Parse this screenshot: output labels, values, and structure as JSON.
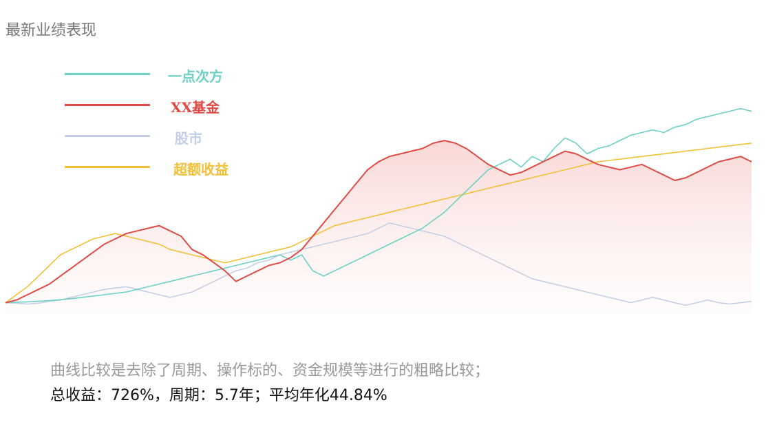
{
  "header": {
    "title": "最新业绩表现"
  },
  "chart_data": {
    "type": "line",
    "xlabel": "",
    "ylabel": "",
    "grid": false,
    "legend_placement": "top-left",
    "area_fill_series": "XX基金",
    "x": [
      0,
      1,
      2,
      3,
      4,
      5,
      6,
      7,
      8,
      9,
      10,
      11,
      12,
      13,
      14,
      15,
      16,
      17,
      18,
      19,
      20,
      21,
      22,
      23,
      24,
      25,
      26,
      27,
      28,
      29,
      30,
      31,
      32,
      33,
      34,
      35,
      36,
      37,
      38,
      39,
      40,
      41,
      42,
      43,
      44,
      45,
      46,
      47,
      48,
      49,
      50,
      51,
      52,
      53,
      54,
      55,
      56,
      57,
      58,
      59,
      60,
      61,
      62,
      63,
      64,
      65,
      66,
      67,
      68
    ],
    "ylim": [
      -0.4,
      7.5
    ],
    "series": [
      {
        "name": "一点次方",
        "color": "#6dd0c5",
        "values": [
          0.0,
          0.02,
          0.03,
          0.05,
          0.08,
          0.11,
          0.15,
          0.2,
          0.25,
          0.3,
          0.35,
          0.4,
          0.5,
          0.6,
          0.7,
          0.8,
          0.9,
          1.0,
          1.1,
          1.2,
          1.3,
          1.4,
          1.5,
          1.6,
          1.7,
          1.8,
          1.6,
          1.8,
          1.2,
          1.0,
          1.2,
          1.4,
          1.6,
          1.8,
          2.0,
          2.2,
          2.4,
          2.6,
          2.8,
          3.1,
          3.4,
          3.8,
          4.2,
          4.6,
          5.0,
          5.2,
          5.4,
          5.1,
          5.5,
          5.3,
          5.8,
          6.2,
          6.0,
          5.6,
          5.8,
          5.9,
          6.1,
          6.3,
          6.4,
          6.5,
          6.4,
          6.6,
          6.7,
          6.9,
          7.0,
          7.1,
          7.2,
          7.3,
          7.2
        ]
      },
      {
        "name": "XX基金",
        "color": "#e04a45",
        "values": [
          0.0,
          0.1,
          0.3,
          0.5,
          0.7,
          1.0,
          1.3,
          1.6,
          1.9,
          2.2,
          2.4,
          2.6,
          2.7,
          2.8,
          2.9,
          2.7,
          2.5,
          2.0,
          1.8,
          1.5,
          1.2,
          0.8,
          1.0,
          1.2,
          1.4,
          1.5,
          1.7,
          2.0,
          2.5,
          3.0,
          3.5,
          4.0,
          4.5,
          5.0,
          5.3,
          5.5,
          5.6,
          5.7,
          5.8,
          6.0,
          6.1,
          6.0,
          5.8,
          5.5,
          5.2,
          5.0,
          4.8,
          4.9,
          5.1,
          5.3,
          5.5,
          5.7,
          5.6,
          5.4,
          5.2,
          5.1,
          5.0,
          5.1,
          5.2,
          5.0,
          4.8,
          4.6,
          4.7,
          4.9,
          5.1,
          5.3,
          5.4,
          5.5,
          5.3
        ]
      },
      {
        "name": "股市",
        "color": "#c3cfe6",
        "values": [
          0.0,
          -0.02,
          -0.05,
          -0.02,
          0.05,
          0.1,
          0.2,
          0.3,
          0.4,
          0.5,
          0.55,
          0.6,
          0.5,
          0.4,
          0.3,
          0.2,
          0.3,
          0.4,
          0.6,
          0.8,
          1.0,
          1.2,
          1.3,
          1.5,
          1.6,
          1.8,
          1.9,
          2.0,
          2.1,
          2.2,
          2.3,
          2.4,
          2.5,
          2.6,
          2.8,
          3.0,
          2.9,
          2.8,
          2.7,
          2.6,
          2.5,
          2.3,
          2.1,
          1.9,
          1.7,
          1.5,
          1.3,
          1.1,
          0.9,
          0.8,
          0.7,
          0.6,
          0.5,
          0.4,
          0.3,
          0.2,
          0.1,
          0.0,
          0.1,
          0.2,
          0.1,
          0.0,
          -0.1,
          0.0,
          0.1,
          0.0,
          -0.05,
          0.0,
          0.05
        ]
      },
      {
        "name": "超额收益",
        "color": "#f2c037",
        "values": [
          0.0,
          0.3,
          0.6,
          1.0,
          1.4,
          1.8,
          2.0,
          2.2,
          2.4,
          2.5,
          2.6,
          2.5,
          2.4,
          2.3,
          2.2,
          2.0,
          1.9,
          1.8,
          1.7,
          1.6,
          1.5,
          1.6,
          1.7,
          1.8,
          1.9,
          2.0,
          2.1,
          2.3,
          2.5,
          2.7,
          2.9,
          3.0,
          3.1,
          3.2,
          3.3,
          3.4,
          3.5,
          3.6,
          3.7,
          3.8,
          3.9,
          4.0,
          4.1,
          4.2,
          4.3,
          4.4,
          4.5,
          4.6,
          4.7,
          4.8,
          4.9,
          5.0,
          5.1,
          5.2,
          5.3,
          5.35,
          5.4,
          5.45,
          5.5,
          5.55,
          5.6,
          5.65,
          5.7,
          5.75,
          5.8,
          5.85,
          5.9,
          5.95,
          6.0
        ]
      }
    ]
  },
  "legend": [
    {
      "label": "一点次方",
      "color": "#6dd0c5"
    },
    {
      "label": "XX基金",
      "color": "#e04a45"
    },
    {
      "label": "股市",
      "color": "#c3cfe6"
    },
    {
      "label": "超额收益",
      "color": "#f2c037"
    }
  ],
  "notes": {
    "line1": "曲线比较是去除了周期、操作标的、资金规模等进行的粗略比较；",
    "line2": "总收益：726%，周期：5.7年；平均年化44.84%"
  }
}
